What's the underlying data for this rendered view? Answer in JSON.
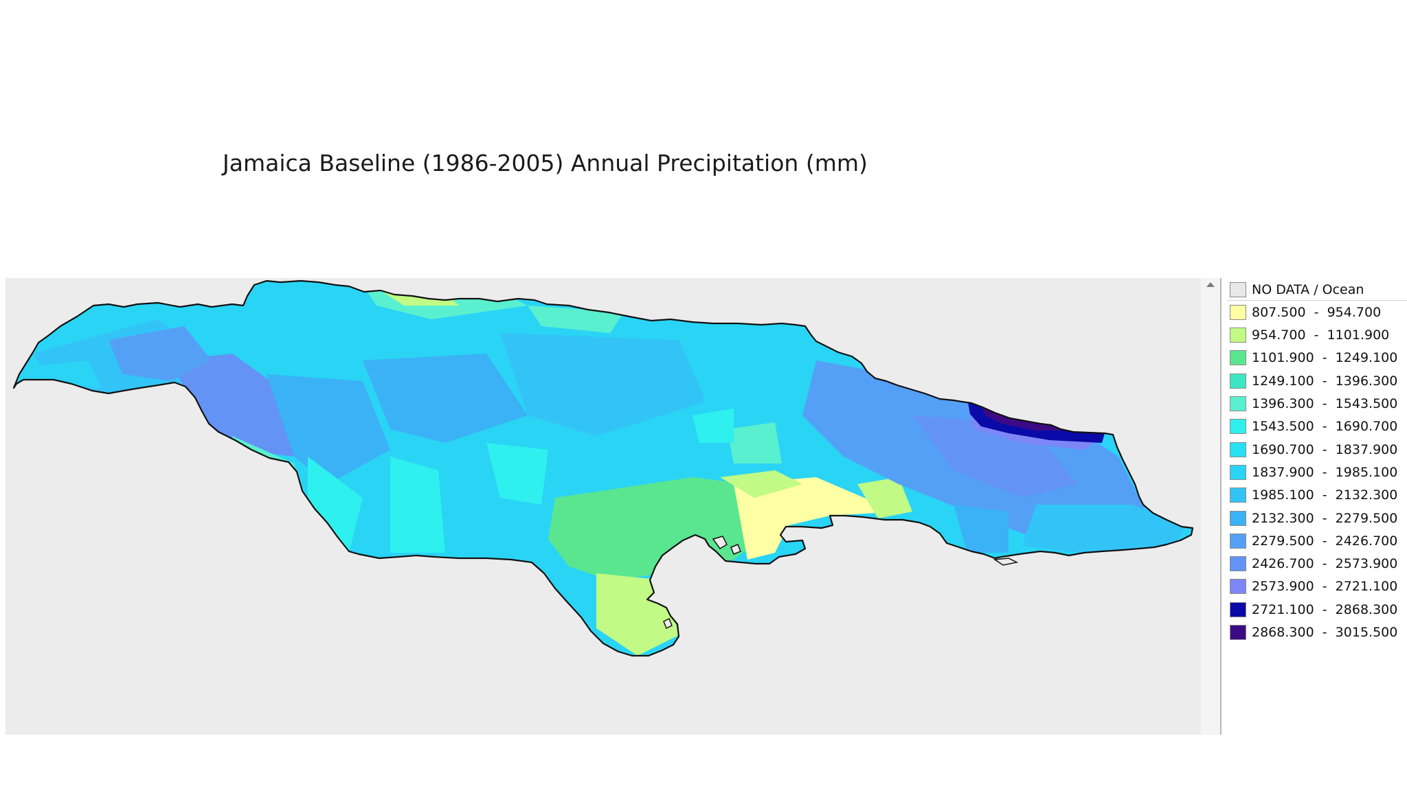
{
  "title": "Jamaica Baseline (1986-2005) Annual Precipitation (mm)",
  "colors": {
    "map_background": "#ececec",
    "coastline": "#111111"
  },
  "legend": [
    {
      "label": "NO DATA / Ocean",
      "color": "#e8e8e8"
    },
    {
      "label": "807.500  -  954.700",
      "color": "#ffffa3"
    },
    {
      "label": "954.700  -  1101.900",
      "color": "#c1fa84"
    },
    {
      "label": "1101.900  -  1249.100",
      "color": "#5ae68f"
    },
    {
      "label": "1249.100  -  1396.300",
      "color": "#3de6c3"
    },
    {
      "label": "1396.300  -  1543.500",
      "color": "#59f0d0"
    },
    {
      "label": "1543.500  -  1690.700",
      "color": "#2ef0ee"
    },
    {
      "label": "1690.700  -  1837.900",
      "color": "#27e1f2"
    },
    {
      "label": "1837.900  -  1985.100",
      "color": "#2ad4f5"
    },
    {
      "label": "1985.100  -  2132.300",
      "color": "#33c4f7"
    },
    {
      "label": "2132.300  -  2279.500",
      "color": "#3bb2f5"
    },
    {
      "label": "2279.500  -  2426.700",
      "color": "#54a0f7"
    },
    {
      "label": "2426.700  -  2573.900",
      "color": "#6293f5"
    },
    {
      "label": "2573.900  -  2721.100",
      "color": "#7d86f7"
    },
    {
      "label": "2721.100  -  2868.300",
      "color": "#0a0aa8"
    },
    {
      "label": "2868.300  -  3015.500",
      "color": "#3d0a85"
    }
  ]
}
